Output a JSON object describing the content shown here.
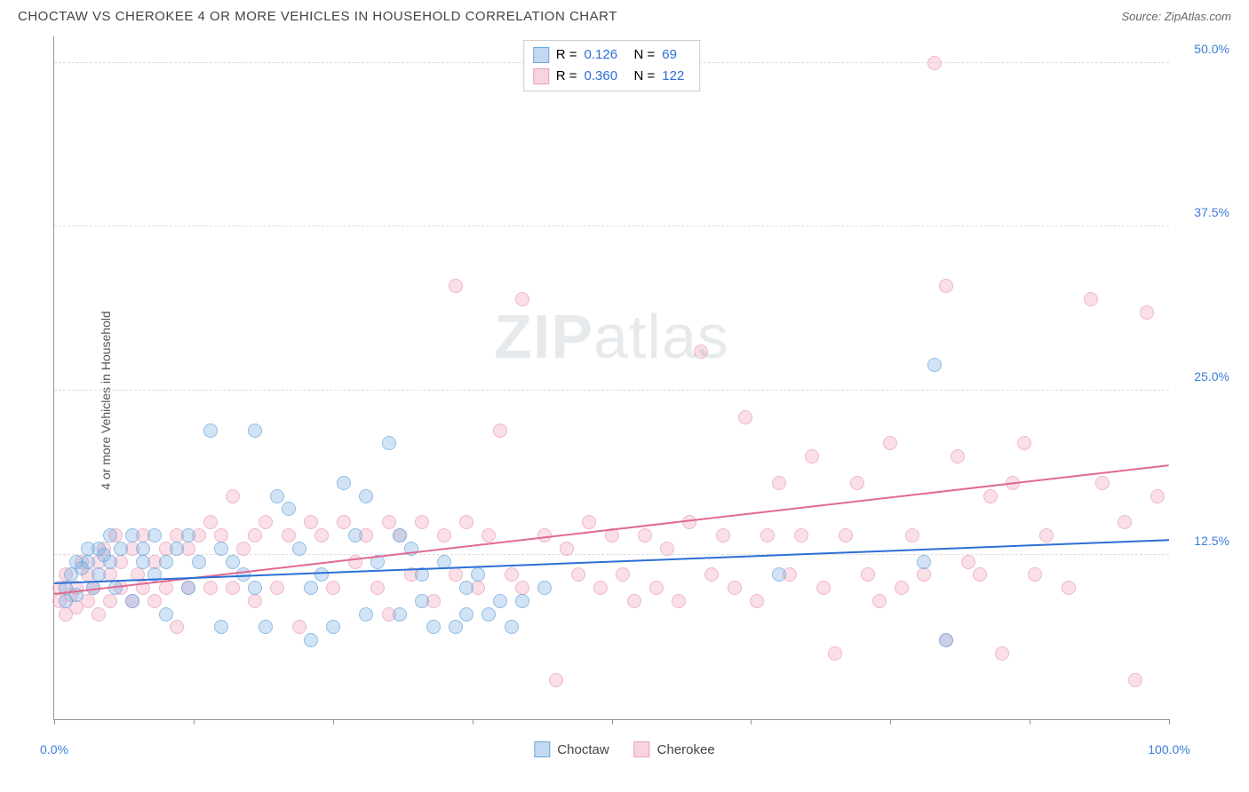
{
  "header": {
    "title": "CHOCTAW VS CHEROKEE 4 OR MORE VEHICLES IN HOUSEHOLD CORRELATION CHART",
    "source_prefix": "Source: ",
    "source": "ZipAtlas.com"
  },
  "chart": {
    "type": "scatter",
    "y_axis_label": "4 or more Vehicles in Household",
    "watermark_bold": "ZIP",
    "watermark_light": "atlas",
    "xlim": [
      0,
      100
    ],
    "ylim": [
      0,
      52
    ],
    "x_ticks": [
      0,
      12.5,
      25,
      37.5,
      50,
      62.5,
      75,
      87.5,
      100
    ],
    "x_tick_labels": {
      "0": "0.0%",
      "100": "100.0%"
    },
    "y_ticks": [
      12.5,
      25.0,
      37.5,
      50.0
    ],
    "y_tick_labels": [
      "12.5%",
      "25.0%",
      "37.5%",
      "50.0%"
    ],
    "x_label_color": "#3b7dd8",
    "y_label_color": "#3b7dd8",
    "grid_color": "#dddddd",
    "axis_color": "#999999",
    "point_radius": 8,
    "series": {
      "choctaw": {
        "label": "Choctaw",
        "fill_color": "rgba(120,170,225,0.45)",
        "stroke_color": "#6aa8de",
        "trend_color": "#2b6fd6",
        "R": "0.126",
        "N": "69",
        "trend": {
          "x1": 0,
          "y1": 10.3,
          "x2": 100,
          "y2": 13.6
        },
        "points": [
          [
            1,
            10
          ],
          [
            1,
            9
          ],
          [
            1.5,
            11
          ],
          [
            2,
            12
          ],
          [
            2,
            9.5
          ],
          [
            2.5,
            11.5
          ],
          [
            3,
            13
          ],
          [
            3,
            12
          ],
          [
            3.5,
            10
          ],
          [
            4,
            13
          ],
          [
            4,
            11
          ],
          [
            4.5,
            12.5
          ],
          [
            5,
            12
          ],
          [
            5,
            14
          ],
          [
            5.5,
            10
          ],
          [
            6,
            13
          ],
          [
            7,
            14
          ],
          [
            7,
            9
          ],
          [
            8,
            13
          ],
          [
            8,
            12
          ],
          [
            9,
            14
          ],
          [
            9,
            11
          ],
          [
            10,
            8
          ],
          [
            10,
            12
          ],
          [
            11,
            13
          ],
          [
            12,
            14
          ],
          [
            12,
            10
          ],
          [
            13,
            12
          ],
          [
            14,
            22
          ],
          [
            15,
            13
          ],
          [
            15,
            7
          ],
          [
            16,
            12
          ],
          [
            17,
            11
          ],
          [
            18,
            22
          ],
          [
            18,
            10
          ],
          [
            19,
            7
          ],
          [
            20,
            17
          ],
          [
            21,
            16
          ],
          [
            22,
            13
          ],
          [
            23,
            10
          ],
          [
            23,
            6
          ],
          [
            24,
            11
          ],
          [
            25,
            7
          ],
          [
            26,
            18
          ],
          [
            27,
            14
          ],
          [
            28,
            17
          ],
          [
            28,
            8
          ],
          [
            29,
            12
          ],
          [
            30,
            21
          ],
          [
            31,
            14
          ],
          [
            31,
            8
          ],
          [
            32,
            13
          ],
          [
            33,
            11
          ],
          [
            33,
            9
          ],
          [
            34,
            7
          ],
          [
            35,
            12
          ],
          [
            36,
            7
          ],
          [
            37,
            10
          ],
          [
            37,
            8
          ],
          [
            38,
            11
          ],
          [
            39,
            8
          ],
          [
            40,
            9
          ],
          [
            41,
            7
          ],
          [
            42,
            9
          ],
          [
            44,
            10
          ],
          [
            65,
            11
          ],
          [
            78,
            12
          ],
          [
            79,
            27
          ],
          [
            80,
            6
          ]
        ]
      },
      "cherokee": {
        "label": "Cherokee",
        "fill_color": "rgba(240,160,185,0.45)",
        "stroke_color": "#eaa0b8",
        "trend_color": "#e06a8f",
        "R": "0.360",
        "N": "122",
        "trend": {
          "x1": 0,
          "y1": 9.5,
          "x2": 100,
          "y2": 19.3
        },
        "points": [
          [
            0.5,
            9
          ],
          [
            0.5,
            10
          ],
          [
            1,
            8
          ],
          [
            1,
            11
          ],
          [
            1.5,
            9.5
          ],
          [
            2,
            10
          ],
          [
            2,
            8.5
          ],
          [
            2.5,
            12
          ],
          [
            3,
            9
          ],
          [
            3,
            11
          ],
          [
            3.5,
            10
          ],
          [
            4,
            12
          ],
          [
            4,
            8
          ],
          [
            4.5,
            13
          ],
          [
            5,
            11
          ],
          [
            5,
            9
          ],
          [
            5.5,
            14
          ],
          [
            6,
            10
          ],
          [
            6,
            12
          ],
          [
            7,
            13
          ],
          [
            7,
            9
          ],
          [
            7.5,
            11
          ],
          [
            8,
            14
          ],
          [
            8,
            10
          ],
          [
            9,
            12
          ],
          [
            9,
            9
          ],
          [
            10,
            13
          ],
          [
            10,
            10
          ],
          [
            11,
            14
          ],
          [
            11,
            7
          ],
          [
            12,
            13
          ],
          [
            12,
            10
          ],
          [
            13,
            14
          ],
          [
            14,
            15
          ],
          [
            14,
            10
          ],
          [
            15,
            14
          ],
          [
            16,
            17
          ],
          [
            16,
            10
          ],
          [
            17,
            13
          ],
          [
            18,
            14
          ],
          [
            18,
            9
          ],
          [
            19,
            15
          ],
          [
            20,
            10
          ],
          [
            21,
            14
          ],
          [
            22,
            7
          ],
          [
            23,
            15
          ],
          [
            24,
            14
          ],
          [
            25,
            10
          ],
          [
            26,
            15
          ],
          [
            27,
            12
          ],
          [
            28,
            14
          ],
          [
            29,
            10
          ],
          [
            30,
            15
          ],
          [
            30,
            8
          ],
          [
            31,
            14
          ],
          [
            32,
            11
          ],
          [
            33,
            15
          ],
          [
            34,
            9
          ],
          [
            35,
            14
          ],
          [
            36,
            33
          ],
          [
            36,
            11
          ],
          [
            37,
            15
          ],
          [
            38,
            10
          ],
          [
            39,
            14
          ],
          [
            40,
            22
          ],
          [
            41,
            11
          ],
          [
            42,
            32
          ],
          [
            42,
            10
          ],
          [
            44,
            14
          ],
          [
            45,
            3
          ],
          [
            46,
            13
          ],
          [
            47,
            11
          ],
          [
            48,
            15
          ],
          [
            49,
            10
          ],
          [
            50,
            14
          ],
          [
            51,
            11
          ],
          [
            52,
            9
          ],
          [
            53,
            14
          ],
          [
            54,
            10
          ],
          [
            55,
            13
          ],
          [
            56,
            9
          ],
          [
            57,
            15
          ],
          [
            58,
            28
          ],
          [
            59,
            11
          ],
          [
            60,
            14
          ],
          [
            61,
            10
          ],
          [
            62,
            23
          ],
          [
            63,
            9
          ],
          [
            64,
            14
          ],
          [
            65,
            18
          ],
          [
            66,
            11
          ],
          [
            67,
            14
          ],
          [
            68,
            20
          ],
          [
            69,
            10
          ],
          [
            70,
            5
          ],
          [
            71,
            14
          ],
          [
            72,
            18
          ],
          [
            73,
            11
          ],
          [
            74,
            9
          ],
          [
            75,
            21
          ],
          [
            76,
            10
          ],
          [
            77,
            14
          ],
          [
            78,
            11
          ],
          [
            79,
            50
          ],
          [
            80,
            33
          ],
          [
            80,
            6
          ],
          [
            81,
            20
          ],
          [
            82,
            12
          ],
          [
            83,
            11
          ],
          [
            84,
            17
          ],
          [
            85,
            5
          ],
          [
            86,
            18
          ],
          [
            87,
            21
          ],
          [
            88,
            11
          ],
          [
            89,
            14
          ],
          [
            91,
            10
          ],
          [
            93,
            32
          ],
          [
            94,
            18
          ],
          [
            96,
            15
          ],
          [
            97,
            3
          ],
          [
            98,
            31
          ],
          [
            99,
            17
          ]
        ]
      }
    },
    "legend_top": {
      "r_label": "R =",
      "n_label": "N =",
      "value_color": "#2b6fd6",
      "text_color": "#444444"
    }
  }
}
